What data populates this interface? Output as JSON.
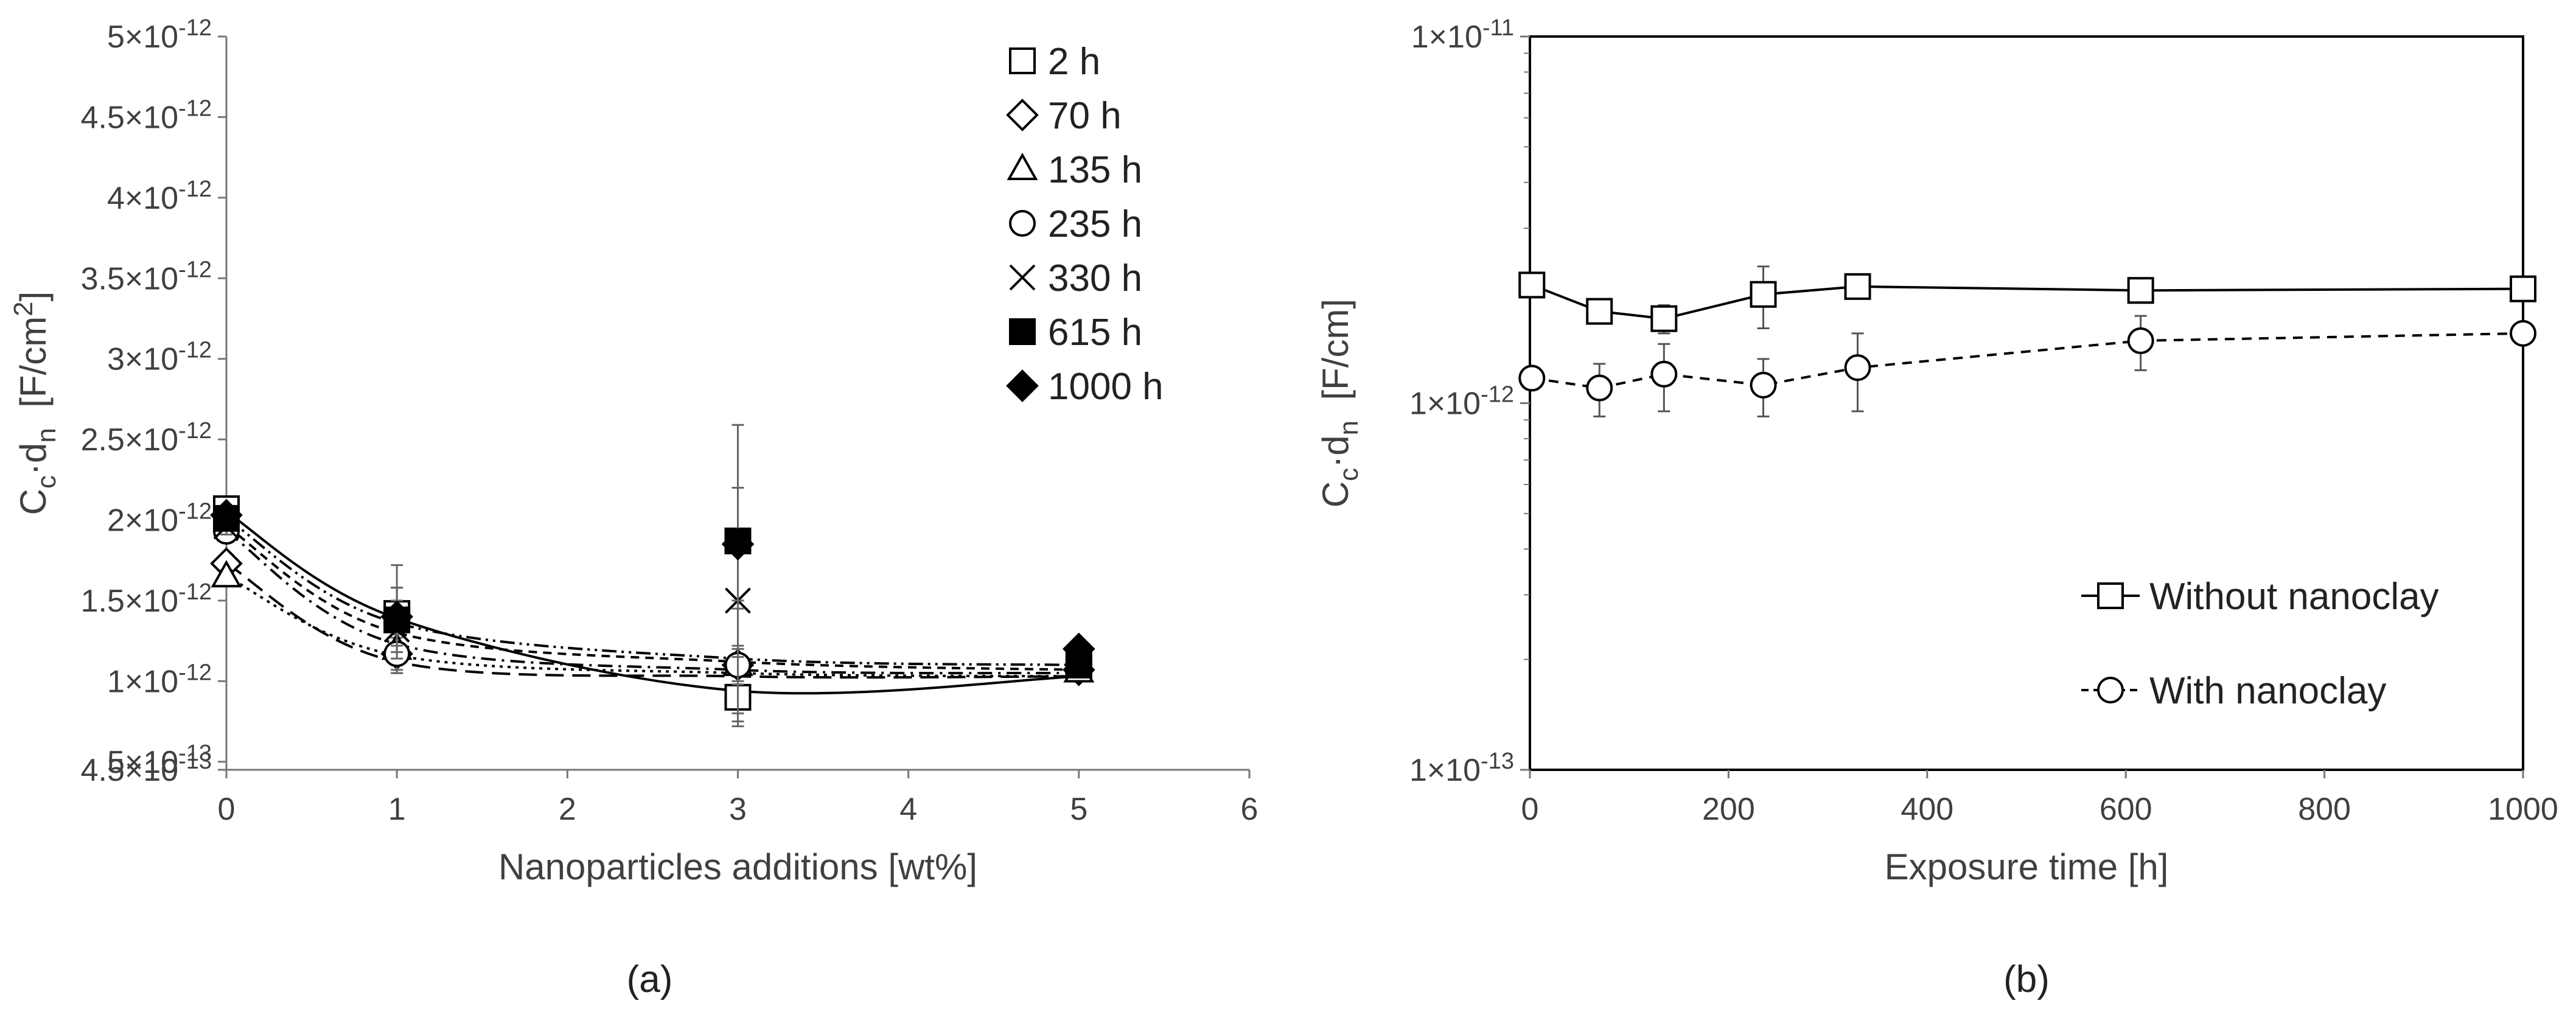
{
  "chart_data": [
    {
      "panel": "(a)",
      "type": "scatter",
      "xlabel": "Nanoparticles additions [wt%]",
      "ylabel_main": "C",
      "ylabel_sub1": "c",
      "ylabel_dot": "·d",
      "ylabel_sub2": "n",
      "ylabel_unit": "[F/cm",
      "ylabel_unit_sup": "2",
      "ylabel_unit_close": "]",
      "xlim": [
        0,
        6
      ],
      "x_ticks": [
        "0",
        "1",
        "2",
        "3",
        "4",
        "5",
        "6"
      ],
      "ylim": [
        4.5e-13,
        5e-12
      ],
      "y_ticks": [
        {
          "value": 4.5e-13,
          "mantissa": "4.5",
          "exp": "-13"
        },
        {
          "value": 5e-13,
          "mantissa": "5",
          "exp": "-13"
        },
        {
          "value": 1e-12,
          "mantissa": "1",
          "exp": "-12"
        },
        {
          "value": 1.5e-12,
          "mantissa": "1.5",
          "exp": "-12"
        },
        {
          "value": 2e-12,
          "mantissa": "2",
          "exp": "-12"
        },
        {
          "value": 2.5e-12,
          "mantissa": "2.5",
          "exp": "-12"
        },
        {
          "value": 3e-12,
          "mantissa": "3",
          "exp": "-12"
        },
        {
          "value": 3.5e-12,
          "mantissa": "3.5",
          "exp": "-12"
        },
        {
          "value": 4e-12,
          "mantissa": "4",
          "exp": "-12"
        },
        {
          "value": 4.5e-12,
          "mantissa": "4.5",
          "exp": "-12"
        },
        {
          "value": 5e-12,
          "mantissa": "5",
          "exp": "-12"
        }
      ],
      "legend_position": "top-right",
      "series": [
        {
          "name": "2 h",
          "marker": "square-open",
          "dash": "",
          "x": [
            0,
            1,
            3,
            5
          ],
          "y": [
            2.07e-12,
            1.42e-12,
            9e-13,
            1.08e-12
          ],
          "err": [
            5e-14,
            3e-13,
            1.8e-13,
            3e-14
          ],
          "fit": [
            2.05e-12,
            1.39e-12,
            9.4e-13,
            1.03e-12
          ]
        },
        {
          "name": "70 h",
          "marker": "diamond-open",
          "dash": "30 14",
          "x": [
            0,
            1,
            3,
            5
          ],
          "y": [
            1.73e-12,
            1.17e-12,
            1.1e-12,
            1.07e-12
          ],
          "err": [
            4e-14,
            1e-13,
            1e-13,
            3e-14
          ],
          "fit": [
            1.73e-12,
            1.12e-12,
            1.03e-12,
            1.03e-12
          ]
        },
        {
          "name": "135 h",
          "marker": "triangle-open",
          "dash": "5 8",
          "x": [
            0,
            1,
            3,
            5
          ],
          "y": [
            1.65e-12,
            1.2e-12,
            1.1e-12,
            1.06e-12
          ],
          "err": [
            4e-14,
            1.5e-13,
            3.5e-13,
            3e-14
          ],
          "fit": [
            1.65e-12,
            1.16e-12,
            1.05e-12,
            1.03e-12
          ]
        },
        {
          "name": "235 h",
          "marker": "circle-open",
          "dash": "24 10 4 10",
          "x": [
            0,
            1,
            3,
            5
          ],
          "y": [
            1.93e-12,
            1.17e-12,
            1.1e-12,
            1.1e-12
          ],
          "err": [
            4e-14,
            1.2e-13,
            1.2e-13,
            3e-14
          ],
          "fit": [
            1.93e-12,
            1.23e-12,
            1.07e-12,
            1.05e-12
          ]
        },
        {
          "name": "330 h",
          "marker": "cross",
          "dash": "14 10",
          "x": [
            0,
            1,
            3,
            5
          ],
          "y": [
            1.96e-12,
            1.32e-12,
            1.5e-12,
            1.1e-12
          ],
          "err": [
            5e-14,
            1.8e-13,
            7e-13,
            3e-14
          ],
          "fit": [
            1.96e-12,
            1.3e-12,
            1.12e-12,
            1.07e-12
          ]
        },
        {
          "name": "615 h",
          "marker": "square-filled",
          "dash": "24 8 4 8 4 8",
          "x": [
            0,
            1,
            3,
            5
          ],
          "y": [
            2.01e-12,
            1.38e-12,
            1.87e-12,
            1.1e-12
          ],
          "err": [
            5e-14,
            2e-13,
            7.2e-13,
            3e-14
          ],
          "fit": [
            2.01e-12,
            1.36e-12,
            1.14e-12,
            1.1e-12
          ]
        },
        {
          "name": "1000 h",
          "marker": "diamond-filled",
          "dash": "",
          "x": [
            0,
            1,
            3,
            5
          ],
          "y": [
            2.03e-12,
            1.4e-12,
            1.85e-12,
            1.2e-12
          ],
          "err": [
            5e-14,
            1.8e-13,
            3.5e-13,
            5e-14
          ],
          "fit": null
        }
      ]
    },
    {
      "panel": "(b)",
      "type": "line",
      "xlabel": "Exposure time [h]",
      "ylabel_main": "C",
      "ylabel_sub1": "c",
      "ylabel_dot": "·d",
      "ylabel_sub2": "n",
      "ylabel_unit": "[F/cm]",
      "xlim": [
        0,
        1000
      ],
      "x_ticks": [
        "0",
        "200",
        "400",
        "600",
        "800",
        "1000"
      ],
      "y_scale": "log",
      "ylim": [
        1e-13,
        1e-11
      ],
      "y_ticks": [
        {
          "value": 1e-13,
          "mantissa": "1",
          "exp": "-13"
        },
        {
          "value": 1e-12,
          "mantissa": "1",
          "exp": "-12"
        },
        {
          "value": 1e-11,
          "mantissa": "1",
          "exp": "-11"
        }
      ],
      "legend_position": "bottom-right",
      "series": [
        {
          "name": "Without nanoclay",
          "marker": "square-open",
          "dash": "",
          "x": [
            2,
            70,
            135,
            235,
            330,
            615,
            1000
          ],
          "y": [
            2.1e-12,
            1.78e-12,
            1.7e-12,
            1.98e-12,
            2.08e-12,
            2.03e-12,
            2.05e-12
          ],
          "err": [
            8e-14,
            1e-13,
            1.5e-13,
            3.8e-13,
            1.2e-13,
            8e-14,
            8e-14
          ]
        },
        {
          "name": "With nanoclay",
          "marker": "circle-open",
          "dash": "16 12",
          "x": [
            2,
            70,
            135,
            235,
            330,
            615,
            1000
          ],
          "y": [
            1.17e-12,
            1.1e-12,
            1.2e-12,
            1.12e-12,
            1.25e-12,
            1.48e-12,
            1.55e-12
          ],
          "err": [
            8e-14,
            1.8e-13,
            2.5e-13,
            2e-13,
            3e-13,
            2.5e-13,
            5e-14
          ]
        }
      ]
    }
  ]
}
